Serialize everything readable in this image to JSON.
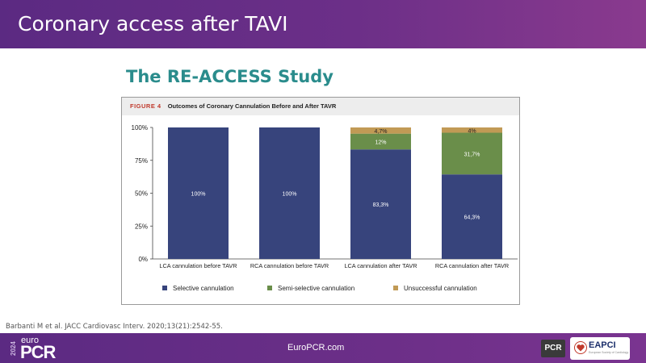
{
  "slide": {
    "header_title": "Coronary access after TAVI",
    "study_title": "The RE-ACCESS Study",
    "citation": "Barbanti M et al. JACC Cardiovasc Interv. 2020;13(21):2542-55.",
    "footer_site": "EuroPCR.com",
    "logo": {
      "year": "2024",
      "euro": "euro",
      "pcr": "PCR"
    },
    "pcr_badge": "PCR",
    "eapci": {
      "name": "EAPCI",
      "subtitle": "European Society of Cardiology"
    }
  },
  "colors": {
    "header_bg": "#5b2a82",
    "study_title": "#2a8c8c",
    "selective": "#37447c",
    "semi_selective": "#6a8e4a",
    "unsuccessful": "#c19a55",
    "figure_label": "#c0392b"
  },
  "figure": {
    "label": "FIGURE 4",
    "caption": "Outcomes of Coronary Cannulation Before and After TAVR"
  },
  "chart_data": {
    "type": "bar",
    "stacked": true,
    "categories": [
      "LCA cannulation before TAVR",
      "RCA cannulation before TAVR",
      "LCA cannulation after TAVR",
      "RCA cannulation after TAVR"
    ],
    "series": [
      {
        "name": "Selective cannulation",
        "color": "#37447c",
        "values": [
          100,
          100,
          83.3,
          64.3
        ],
        "labels": [
          "100%",
          "100%",
          "83,3%",
          "64,3%"
        ]
      },
      {
        "name": "Semi-selective cannulation",
        "color": "#6a8e4a",
        "values": [
          0,
          0,
          12,
          31.7
        ],
        "labels": [
          "",
          "",
          "12%",
          "31,7%"
        ]
      },
      {
        "name": "Unsuccessful cannulation",
        "color": "#c19a55",
        "values": [
          0,
          0,
          4.7,
          4
        ],
        "labels": [
          "",
          "",
          "4,7%",
          "4%"
        ]
      }
    ],
    "yticks": [
      "0%",
      "25%",
      "50%",
      "75%",
      "100%"
    ],
    "ylim": [
      0,
      100
    ],
    "grid": false,
    "legend": "bottom"
  }
}
